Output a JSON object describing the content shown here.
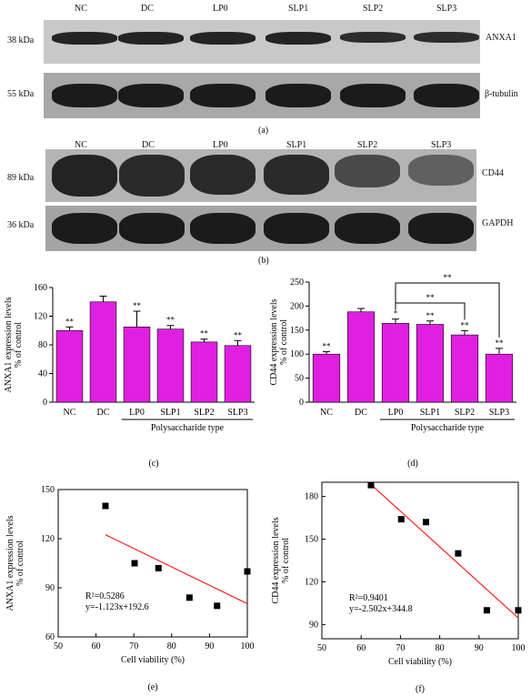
{
  "blot_a": {
    "lanes": [
      "NC",
      "DC",
      "LP0",
      "SLP1",
      "SLP2",
      "SLP3"
    ],
    "rows": [
      {
        "marker": "38 kDa",
        "protein": "ANXA1"
      },
      {
        "marker": "55 kDa",
        "protein": "β-tubulin"
      }
    ],
    "caption": "(a)"
  },
  "blot_b": {
    "lanes": [
      "NC",
      "DC",
      "LP0",
      "SLP1",
      "SLP2",
      "SLP3"
    ],
    "rows": [
      {
        "marker": "89 kDa",
        "protein": "CD44"
      },
      {
        "marker": "36 kDa",
        "protein": "GAPDH"
      }
    ],
    "caption": "(b)"
  },
  "chart_data": [
    {
      "type": "bar",
      "panel": "(c)",
      "categories": [
        "NC",
        "DC",
        "LP0",
        "SLP1",
        "SLP2",
        "SLP3"
      ],
      "values": [
        100,
        140,
        105,
        102,
        84,
        79
      ],
      "errors": [
        5,
        8,
        22,
        5,
        4,
        7
      ],
      "significance": [
        "**",
        "",
        "**",
        "**",
        "**",
        "**"
      ],
      "ylabel": "ANXA1 expression levels\n% of control",
      "ylim": [
        0,
        160
      ],
      "yticks": [
        0,
        40,
        80,
        120,
        160
      ],
      "group_label": "Polysaccharide type",
      "bar_color": "#e020e0",
      "caption": "(c)"
    },
    {
      "type": "bar",
      "panel": "(d)",
      "categories": [
        "NC",
        "DC",
        "LP0",
        "SLP1",
        "SLP2",
        "SLP3"
      ],
      "values": [
        100,
        188,
        164,
        162,
        140,
        100
      ],
      "errors": [
        5,
        7,
        9,
        7,
        9,
        12
      ],
      "significance": [
        "**",
        "",
        "*",
        "**",
        "**",
        "**"
      ],
      "brackets": [
        {
          "from": "LP0",
          "to": "SLP2",
          "label": "**"
        },
        {
          "from": "LP0",
          "to": "SLP3",
          "label": "**"
        }
      ],
      "ylabel": "CD44 expression levels\n% of control",
      "ylim": [
        0,
        250
      ],
      "yticks": [
        0,
        50,
        100,
        150,
        200,
        250
      ],
      "group_label": "Polysaccharide type",
      "bar_color": "#e020e0",
      "caption": "(d)"
    },
    {
      "type": "scatter",
      "panel": "(e)",
      "x": [
        62.5,
        70.2,
        76.5,
        84.7,
        92.0,
        100
      ],
      "y": [
        140,
        105,
        102,
        84,
        79,
        100
      ],
      "fit": {
        "slope": -1.123,
        "intercept": 192.6
      },
      "annotation": [
        "R²=0.5286",
        "y=-1.123x+192.6"
      ],
      "xlabel": "Cell viability (%)",
      "ylabel": "ANXA1 expression levels\n% of control",
      "xlim": [
        50,
        100
      ],
      "xticks": [
        50,
        60,
        70,
        80,
        90,
        100
      ],
      "ylim": [
        60,
        150
      ],
      "yticks": [
        60,
        90,
        120,
        150
      ],
      "fit_color": "#ff2020",
      "caption": "(e)"
    },
    {
      "type": "scatter",
      "panel": "(f)",
      "x": [
        62.5,
        70.2,
        76.5,
        84.7,
        92.0,
        100
      ],
      "y": [
        188,
        164,
        162,
        140,
        100,
        100
      ],
      "fit": {
        "slope": -2.502,
        "intercept": 344.8
      },
      "annotation": [
        "R²=0.9401",
        "y=-2.502x+344.8"
      ],
      "xlabel": "Cell viability (%)",
      "ylabel": "CD44 expression levels\n% of control",
      "xlim": [
        50,
        100
      ],
      "xticks": [
        50,
        60,
        70,
        80,
        90,
        100
      ],
      "ylim": [
        80,
        190
      ],
      "yticks": [
        90,
        120,
        150,
        180
      ],
      "fit_color": "#ff2020",
      "caption": "(f)"
    }
  ]
}
